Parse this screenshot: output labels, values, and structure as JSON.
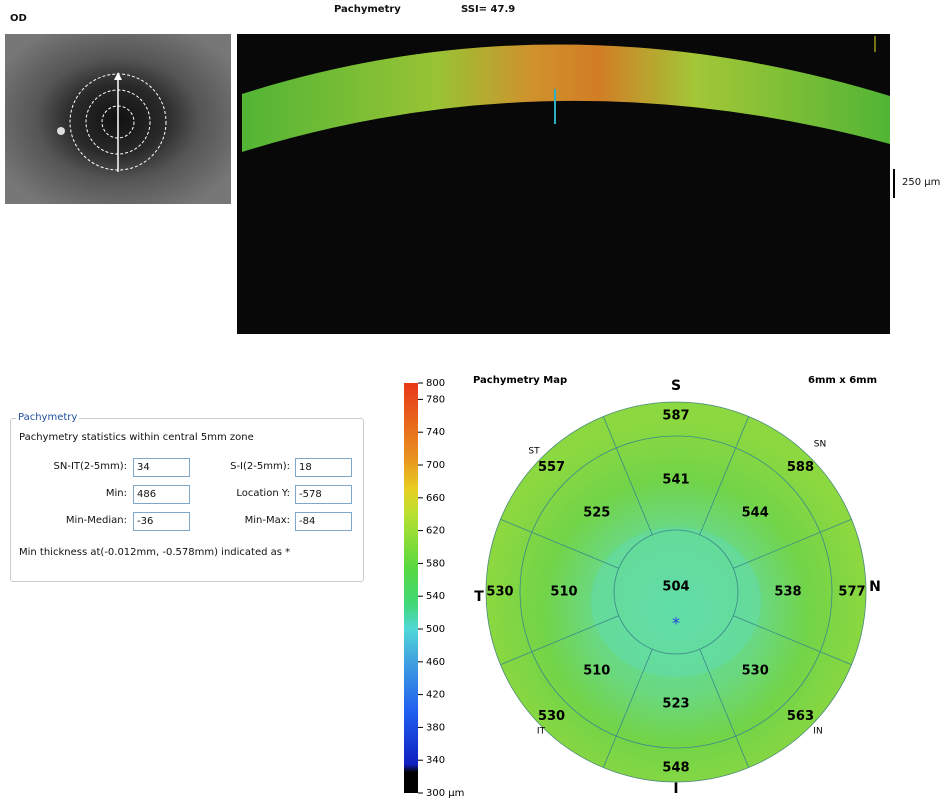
{
  "header": {
    "eye": "OD",
    "title": "Pachymetry",
    "ssi": "SSI= 47.9"
  },
  "scan": {
    "scale": "250 µm"
  },
  "stats": {
    "legend": "Pachymetry",
    "description": "Pachymetry statistics within central 5mm zone",
    "fields": [
      {
        "label": "SN-IT(2-5mm):",
        "value": "34"
      },
      {
        "label": "S-I(2-5mm):",
        "value": "18"
      },
      {
        "label": "Min:",
        "value": "486"
      },
      {
        "label": "Location Y:",
        "value": "-578"
      },
      {
        "label": "Min-Median:",
        "value": "-36"
      },
      {
        "label": "Min-Max:",
        "value": "-84"
      }
    ],
    "note": "Min thickness at(-0.012mm, -0.578mm) indicated as *"
  },
  "colorbar": {
    "range": [
      300,
      800
    ],
    "ticks": [
      800,
      780,
      740,
      700,
      660,
      620,
      580,
      540,
      500,
      460,
      420,
      380,
      340,
      {
        "value": 300,
        "label": "300 µm"
      }
    ]
  },
  "map": {
    "title": "Pachymetry Map",
    "size": "6mm x 6mm",
    "directions": {
      "S": "S",
      "N": "N",
      "I": "I",
      "T": "T"
    },
    "sectors": {
      "ST": "ST",
      "SN": "SN",
      "IT": "IT",
      "IN": "IN"
    },
    "center": 504,
    "inner": [
      541,
      544,
      538,
      530,
      523,
      510,
      510,
      525
    ],
    "outer": [
      587,
      588,
      577,
      563,
      548,
      530,
      530,
      557
    ]
  }
}
